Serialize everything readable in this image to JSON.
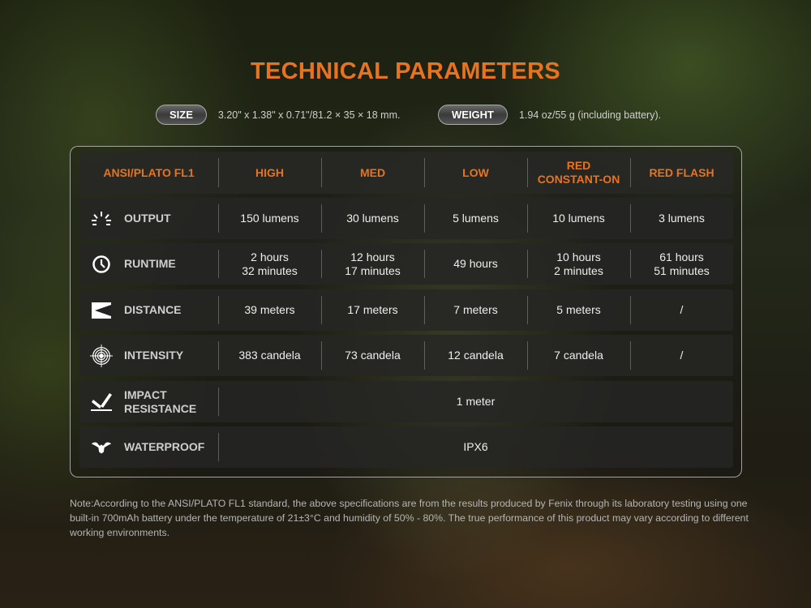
{
  "title": "TECHNICAL PARAMETERS",
  "size": {
    "label": "SIZE",
    "value": "3.20\" x 1.38\" x 0.71\"/81.2 × 35 × 18 mm."
  },
  "weight": {
    "label": "WEIGHT",
    "value": "1.94 oz/55 g (including battery)."
  },
  "colors": {
    "accent": "#e8731f"
  },
  "table": {
    "headers": [
      "ANSI/PLATO FL1",
      "HIGH",
      "MED",
      "LOW",
      "RED\nCONSTANT-ON",
      "RED FLASH"
    ],
    "rows": [
      {
        "icon": "brightness-rays-icon",
        "label": "OUTPUT",
        "values": [
          "150 lumens",
          "30 lumens",
          "5 lumens",
          "10 lumens",
          "3 lumens"
        ]
      },
      {
        "icon": "clock-icon",
        "label": "RUNTIME",
        "values": [
          "2 hours\n32 minutes",
          "12 hours\n17 minutes",
          "49 hours",
          "10 hours\n2 minutes",
          "61 hours\n51 minutes"
        ]
      },
      {
        "icon": "beam-distance-icon",
        "label": "DISTANCE",
        "values": [
          "39 meters",
          "17 meters",
          "7 meters",
          "5 meters",
          "/"
        ]
      },
      {
        "icon": "target-icon",
        "label": "INTENSITY",
        "values": [
          "383 candela",
          "73 candela",
          "12 candela",
          "7 candela",
          "/"
        ]
      },
      {
        "icon": "impact-icon",
        "label": "IMPACT\nRESISTANCE",
        "value": "1 meter"
      },
      {
        "icon": "water-splash-icon",
        "label": "WATERPROOF",
        "value": "IPX6"
      }
    ]
  },
  "note": "Note:According to the ANSI/PLATO FL1 standard, the above specifications are from the results produced by Fenix through its laboratory testing using one built-in 700mAh battery under the temperature of 21±3°C and humidity of 50% - 80%. The true performance of this product may vary according to different working environments."
}
